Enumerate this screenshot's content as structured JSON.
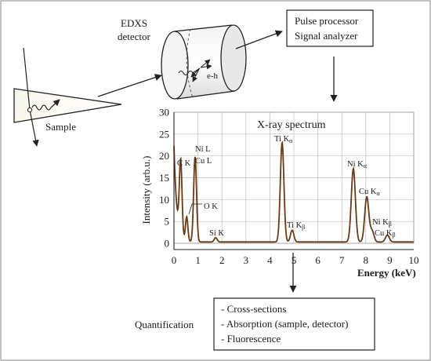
{
  "detector": {
    "line1": "EDXS",
    "line2": "detector",
    "carrier_label": "e-h"
  },
  "sample": {
    "label": "Sample"
  },
  "processor": {
    "line1": "Pulse processor",
    "line2": "Signal analyzer"
  },
  "quantification": {
    "label": "Quantification",
    "items": [
      "- Cross-sections",
      "- Absorption (sample, detector)",
      "- Fluorescence"
    ]
  },
  "chart_data": {
    "type": "line",
    "title": "X-ray spectrum",
    "xlabel": "Energy (keV)",
    "ylabel": "Intensity (arb.u.)",
    "xlim": [
      0,
      10
    ],
    "ylim": [
      0,
      30
    ],
    "x_ticks": [
      0,
      1,
      2,
      3,
      4,
      5,
      6,
      7,
      8,
      9,
      10
    ],
    "y_ticks": [
      0,
      5,
      10,
      15,
      20,
      25,
      30
    ],
    "grid": true,
    "background": 0.3,
    "peaks": [
      {
        "label": "C K",
        "x": 0.28,
        "y": 17.0,
        "sigma": 0.055
      },
      {
        "label": "O K",
        "x": 0.53,
        "y": 5.5,
        "sigma": 0.05
      },
      {
        "label": "Ni L / Cu L",
        "x": 0.88,
        "y": 19.5,
        "sigma": 0.06
      },
      {
        "label": "Si K",
        "x": 1.74,
        "y": 1.0,
        "sigma": 0.06
      },
      {
        "label": "Ti Kα",
        "x": 4.51,
        "y": 22.8,
        "sigma": 0.075
      },
      {
        "label": "Ti Kβ",
        "x": 4.93,
        "y": 2.7,
        "sigma": 0.07
      },
      {
        "label": "Ni Kα",
        "x": 7.48,
        "y": 16.8,
        "sigma": 0.085
      },
      {
        "label": "Cu Kα",
        "x": 8.04,
        "y": 10.3,
        "sigma": 0.085
      },
      {
        "label": "Ni Kβ",
        "x": 8.26,
        "y": 2.5,
        "sigma": 0.08
      },
      {
        "label": "Cu Kβ",
        "x": 8.9,
        "y": 1.6,
        "sigma": 0.08
      }
    ],
    "low_energy_rise": {
      "amplitude": 22,
      "decay": 0.12
    }
  },
  "peak_labels": {
    "ck": "C K",
    "ok": "O K",
    "nil": "Ni L",
    "cul": "Cu L",
    "sik": "Si K",
    "tika": "Ti K",
    "tikb": "Ti K",
    "nika": "Ni K",
    "cuka": "Cu K",
    "nikb": "Ni K",
    "cukb": "Cu K",
    "alpha": "α",
    "beta": "β"
  },
  "colors": {
    "spectrum": "#6b3a10",
    "grid": "#bdbdbd",
    "axis": "#222222",
    "border": "#9a9a9a"
  }
}
